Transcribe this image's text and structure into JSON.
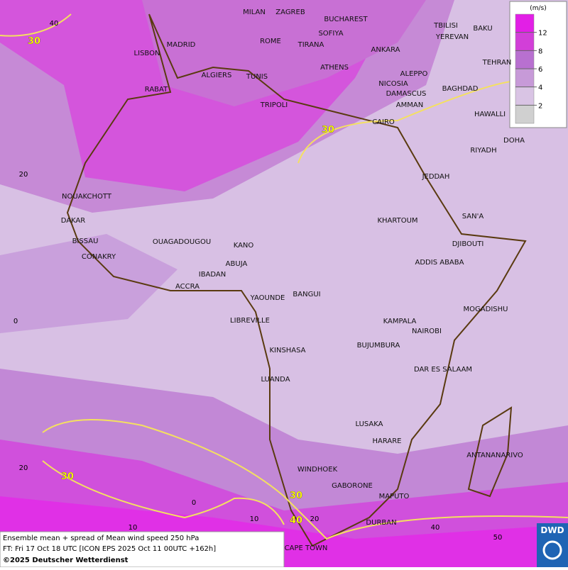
{
  "map": {
    "cities": [
      "MILAN",
      "ZAGREB",
      "BUCHAREST",
      "MADRID",
      "ROME",
      "SOFIYA",
      "TIRANA",
      "ANKARA",
      "TBILISI",
      "BAKU",
      "YEREVAN",
      "LISBON",
      "TEHRAN",
      "ALGIERS",
      "TUNIS",
      "ATHENS",
      "ALEPPO",
      "NICOSIA",
      "BAGHDAD",
      "RABAT",
      "DAMASCUS",
      "AMMAN",
      "TRIPOLI",
      "HAWALLI",
      "CAIRO",
      "DOHA",
      "RIYADH",
      "JEDDAH",
      "NOUAKCHOTT",
      "SAN'A",
      "DAKAR",
      "KHARTOUM",
      "BISSAU",
      "OUAGADOUGOU",
      "KANO",
      "DJIBOUTI",
      "CONAKRY",
      "ABUJA",
      "ADDIS ABABA",
      "IBADAN",
      "ACCRA",
      "YAOUNDE",
      "BANGUI",
      "MOGADISHU",
      "LIBREVILLE",
      "KAMPALA",
      "NAIROBI",
      "BUJUMBURA",
      "KINSHASA",
      "DAR ES SALAAM",
      "LUANDA",
      "LUSAKA",
      "HARARE",
      "ANTANANARIVO",
      "WINDHOEK",
      "GABORONE",
      "MAPUTO",
      "DURBAN",
      "CAPE TOWN"
    ],
    "lat_labels": [
      "40",
      "20",
      "0",
      "20"
    ],
    "lon_labels": [
      "10",
      "0",
      "10",
      "20",
      "40",
      "50"
    ],
    "contour_labels": [
      "30",
      "30",
      "30",
      "30",
      "40"
    ],
    "legend": {
      "unit": "(m/s)",
      "ticks": [
        2,
        4,
        6,
        8,
        12
      ],
      "colors": [
        "#d0d0d0",
        "#d9c4e4",
        "#c79ad8",
        "#b870d0",
        "#d23fd8",
        "#e21fe6"
      ]
    },
    "footer": [
      "Ensemble mean + spread of Mean wind speed 250 hPa",
      "FT: Fri 17 Oct 18 UTC [ICON EPS 2025 Oct 11 00UTC +162h]",
      "©2025 Deutscher Wetterdienst"
    ],
    "logo": "DWD"
  }
}
